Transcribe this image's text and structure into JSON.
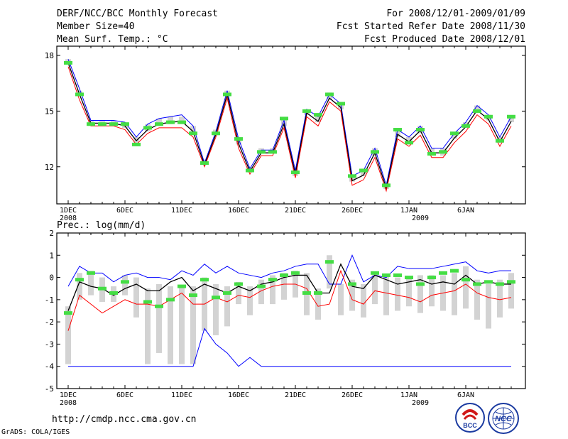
{
  "header": {
    "title": "DERF/NCC/BCC Monthly Forecast",
    "member_size": "Member Size=40",
    "variable": "Mean Surf. Temp.: °C",
    "period": "For 2008/12/01-2009/01/09",
    "started": "Fcst Started Refer Date 2008/11/30",
    "produced": "Fcst Produced Date 2008/12/01"
  },
  "footer": {
    "url": "http://cmdp.ncc.cma.gov.cn",
    "credit": "GrADS: COLA/IGES",
    "logo_bcc": "BCC",
    "logo_ncc": "NCC"
  },
  "colors": {
    "max": "#0000ff",
    "mean": "#000000",
    "min": "#ff0000",
    "observed": "#44dd44",
    "spread": "#d3d3d3",
    "bg": "#ffffff"
  },
  "chart_data": [
    {
      "type": "line",
      "title": "Mean Surf. Temp.: °C",
      "x_ticks": [
        "1DEC",
        "6DEC",
        "11DEC",
        "16DEC",
        "21DEC",
        "26DEC",
        "1JAN",
        "6JAN"
      ],
      "x_year_labels": [
        "2008",
        "2009"
      ],
      "ylim": [
        10,
        18.5
      ],
      "y_ticks": [
        12,
        15,
        18
      ],
      "series": [
        {
          "name": "max",
          "values": [
            17.8,
            16.2,
            14.5,
            14.5,
            14.5,
            14.4,
            13.6,
            14.3,
            14.6,
            14.7,
            14.8,
            14.2,
            12.2,
            13.9,
            16.1,
            13.5,
            11.9,
            12.9,
            12.9,
            14.5,
            11.8,
            15.1,
            14.7,
            15.9,
            15.4,
            11.5,
            11.8,
            13.0,
            11.0,
            14.0,
            13.6,
            14.2,
            13.0,
            13.0,
            13.8,
            14.4,
            15.3,
            14.8,
            13.6,
            14.7
          ]
        },
        {
          "name": "mean",
          "values": [
            17.6,
            15.9,
            14.35,
            14.35,
            14.35,
            14.2,
            13.4,
            14.0,
            14.3,
            14.4,
            14.45,
            13.9,
            12.1,
            13.75,
            15.9,
            13.25,
            11.75,
            12.75,
            12.75,
            14.3,
            11.6,
            14.9,
            14.45,
            15.7,
            15.2,
            11.25,
            11.55,
            12.75,
            10.85,
            13.75,
            13.35,
            13.95,
            12.75,
            12.75,
            13.55,
            14.15,
            15.05,
            14.55,
            13.35,
            14.45
          ]
        },
        {
          "name": "min",
          "values": [
            17.4,
            15.6,
            14.2,
            14.2,
            14.2,
            14.0,
            13.2,
            13.8,
            14.1,
            14.1,
            14.1,
            13.6,
            12.0,
            13.6,
            15.7,
            13.0,
            11.6,
            12.6,
            12.6,
            14.1,
            11.4,
            14.7,
            14.2,
            15.5,
            15.0,
            11.0,
            11.3,
            12.5,
            10.7,
            13.5,
            13.1,
            13.7,
            12.5,
            12.5,
            13.3,
            13.9,
            14.8,
            14.3,
            13.1,
            14.2
          ]
        },
        {
          "name": "observed",
          "values": [
            17.6,
            15.9,
            14.3,
            14.3,
            14.3,
            14.3,
            13.2,
            14.1,
            14.3,
            14.4,
            14.4,
            13.8,
            12.2,
            13.8,
            15.9,
            13.5,
            11.8,
            12.8,
            12.8,
            14.6,
            11.7,
            15.0,
            14.8,
            15.9,
            15.4,
            11.5,
            11.8,
            12.8,
            11.0,
            14.0,
            13.3,
            14.0,
            12.7,
            12.8,
            13.8,
            14.2,
            15.0,
            14.7,
            13.4,
            14.7
          ]
        }
      ],
      "spread": [
        [
          17.5,
          17.8
        ],
        [
          15.8,
          16.1
        ],
        [
          14.2,
          14.5
        ],
        [
          14.2,
          14.5
        ],
        [
          14.2,
          14.5
        ],
        [
          14.1,
          14.4
        ],
        [
          13.3,
          13.6
        ],
        [
          13.9,
          14.3
        ],
        [
          14.2,
          14.6
        ],
        [
          14.3,
          14.7
        ],
        [
          14.3,
          14.7
        ],
        [
          13.8,
          14.2
        ],
        [
          12.1,
          12.4
        ],
        [
          13.7,
          14.0
        ],
        [
          15.8,
          16.1
        ],
        [
          13.2,
          13.5
        ],
        [
          11.7,
          12.0
        ],
        [
          12.7,
          13.0
        ],
        [
          12.7,
          13.0
        ],
        [
          14.2,
          14.6
        ],
        [
          11.5,
          11.9
        ],
        [
          14.8,
          15.1
        ],
        [
          14.4,
          14.8
        ],
        [
          15.6,
          16.0
        ],
        [
          15.1,
          15.4
        ],
        [
          11.2,
          11.5
        ],
        [
          11.5,
          11.9
        ],
        [
          12.6,
          13.0
        ],
        [
          10.8,
          11.1
        ],
        [
          13.6,
          14.0
        ],
        [
          13.3,
          13.6
        ],
        [
          13.8,
          14.2
        ],
        [
          12.6,
          13.0
        ],
        [
          12.6,
          13.0
        ],
        [
          13.5,
          13.8
        ],
        [
          14.1,
          14.4
        ],
        [
          15.0,
          15.3
        ],
        [
          14.5,
          14.8
        ],
        [
          13.3,
          13.6
        ],
        [
          14.4,
          14.7
        ]
      ]
    },
    {
      "type": "line",
      "title": "Prec.: log(mm/d)",
      "x_ticks": [
        "1DEC",
        "6DEC",
        "11DEC",
        "16DEC",
        "21DEC",
        "26DEC",
        "1JAN",
        "6JAN"
      ],
      "x_year_labels": [
        "2008",
        "2009"
      ],
      "ylim": [
        -5,
        2
      ],
      "y_ticks": [
        -5,
        -4,
        -3,
        -2,
        -1,
        0,
        1,
        2
      ],
      "series": [
        {
          "name": "max",
          "values": [
            -0.4,
            0.5,
            0.2,
            0.2,
            -0.2,
            0.1,
            0.2,
            0,
            0,
            -0.1,
            0.3,
            0.1,
            0.6,
            0.2,
            0.5,
            0.2,
            0.1,
            0,
            0.2,
            0.3,
            0.5,
            0.6,
            0.6,
            -0.3,
            -0.3,
            1,
            -0.2,
            0.1,
            0,
            0.5,
            0.4,
            0.4,
            0.4,
            0.5,
            0.6,
            0.7,
            0.3,
            0.2,
            0.3,
            0.3
          ]
        },
        {
          "name": "mean",
          "values": [
            -1.5,
            -0.2,
            -0.4,
            -0.5,
            -0.8,
            -0.5,
            -0.3,
            -0.6,
            -0.6,
            -0.2,
            0,
            -0.6,
            -0.3,
            -0.5,
            -0.7,
            -0.4,
            -0.6,
            -0.3,
            -0.2,
            0,
            0.1,
            0.1,
            -0.7,
            -0.7,
            0.6,
            -0.4,
            -0.5,
            0.1,
            -0.1,
            -0.3,
            -0.2,
            -0.1,
            -0.3,
            -0.2,
            -0.3,
            0.1,
            -0.3,
            -0.2,
            -0.3,
            -0.3
          ]
        },
        {
          "name": "min",
          "values": [
            -2.4,
            -0.8,
            -1.2,
            -1.6,
            -1.3,
            -1,
            -1.2,
            -1.2,
            -1.3,
            -1,
            -0.7,
            -1.2,
            -1.2,
            -0.9,
            -1.1,
            -0.8,
            -0.9,
            -0.6,
            -0.4,
            -0.3,
            -0.3,
            -0.5,
            -1.3,
            -1.2,
            0.3,
            -1,
            -1.2,
            -0.6,
            -0.7,
            -0.8,
            -0.9,
            -1.1,
            -0.8,
            -0.7,
            -0.6,
            -0.3,
            -0.7,
            -0.9,
            -1,
            -0.9
          ]
        },
        {
          "name": "lowest",
          "values": [
            -4,
            -4,
            -4,
            -4,
            -4,
            -4,
            -4,
            -4,
            -4,
            -4,
            -4,
            -4,
            -2.3,
            -3,
            -3.4,
            -4,
            -3.6,
            -4,
            -4,
            -4,
            -4,
            -4,
            -4,
            -4,
            -4,
            -4,
            -4,
            -4,
            -4,
            -4,
            -4,
            -4,
            -4,
            -4,
            -4,
            -4,
            -4,
            -4,
            -4,
            -4
          ]
        },
        {
          "name": "observed",
          "values": [
            -1.6,
            -0.1,
            0.2,
            -0.5,
            -0.7,
            -0.2,
            null,
            -1.1,
            -1.3,
            -1.0,
            -0.4,
            -0.8,
            -0.1,
            -0.9,
            -0.7,
            -0.3,
            null,
            -0.4,
            -0.1,
            0.1,
            0.2,
            -0.7,
            -0.7,
            0.7,
            null,
            -0.3,
            null,
            0.2,
            0.1,
            0.1,
            0,
            -0.3,
            0,
            0.2,
            0.3,
            -0.1,
            -0.3,
            -0.2,
            -0.3,
            -0.2
          ]
        }
      ],
      "spread": [
        [
          -3.9,
          -1.3
        ],
        [
          -1.0,
          0.2
        ],
        [
          -0.8,
          0.3
        ],
        [
          -1.1,
          0.0
        ],
        [
          -1.1,
          -0.4
        ],
        [
          -0.8,
          0.1
        ],
        [
          -1.8,
          0.0
        ],
        [
          -3.9,
          -0.5
        ],
        [
          -3.4,
          -0.3
        ],
        [
          -3.9,
          -0.4
        ],
        [
          -3.9,
          -0.4
        ],
        [
          -3.9,
          -0.4
        ],
        [
          -2.4,
          0.0
        ],
        [
          -2.6,
          -0.3
        ],
        [
          -2.2,
          -0.4
        ],
        [
          -1.2,
          -0.2
        ],
        [
          -1.7,
          -0.4
        ],
        [
          -1.2,
          -0.1
        ],
        [
          -1.2,
          0.1
        ],
        [
          -1.0,
          0.2
        ],
        [
          -0.9,
          0.3
        ],
        [
          -1.7,
          0.2
        ],
        [
          -1.9,
          -0.5
        ],
        [
          -0.5,
          1.0
        ],
        [
          -1.7,
          -0.3
        ],
        [
          -1.5,
          -0.1
        ],
        [
          -1.8,
          -0.3
        ],
        [
          -1.2,
          0.2
        ],
        [
          -1.7,
          0.1
        ],
        [
          -1.5,
          0.0
        ],
        [
          -1.3,
          0.0
        ],
        [
          -1.6,
          0.1
        ],
        [
          -1.3,
          0.1
        ],
        [
          -1.5,
          0.1
        ],
        [
          -1.7,
          0.2
        ],
        [
          -1.4,
          0.5
        ],
        [
          -1.9,
          -0.1
        ],
        [
          -2.3,
          -0.3
        ],
        [
          -1.8,
          -0.1
        ],
        [
          -1.4,
          0.2
        ]
      ]
    }
  ]
}
